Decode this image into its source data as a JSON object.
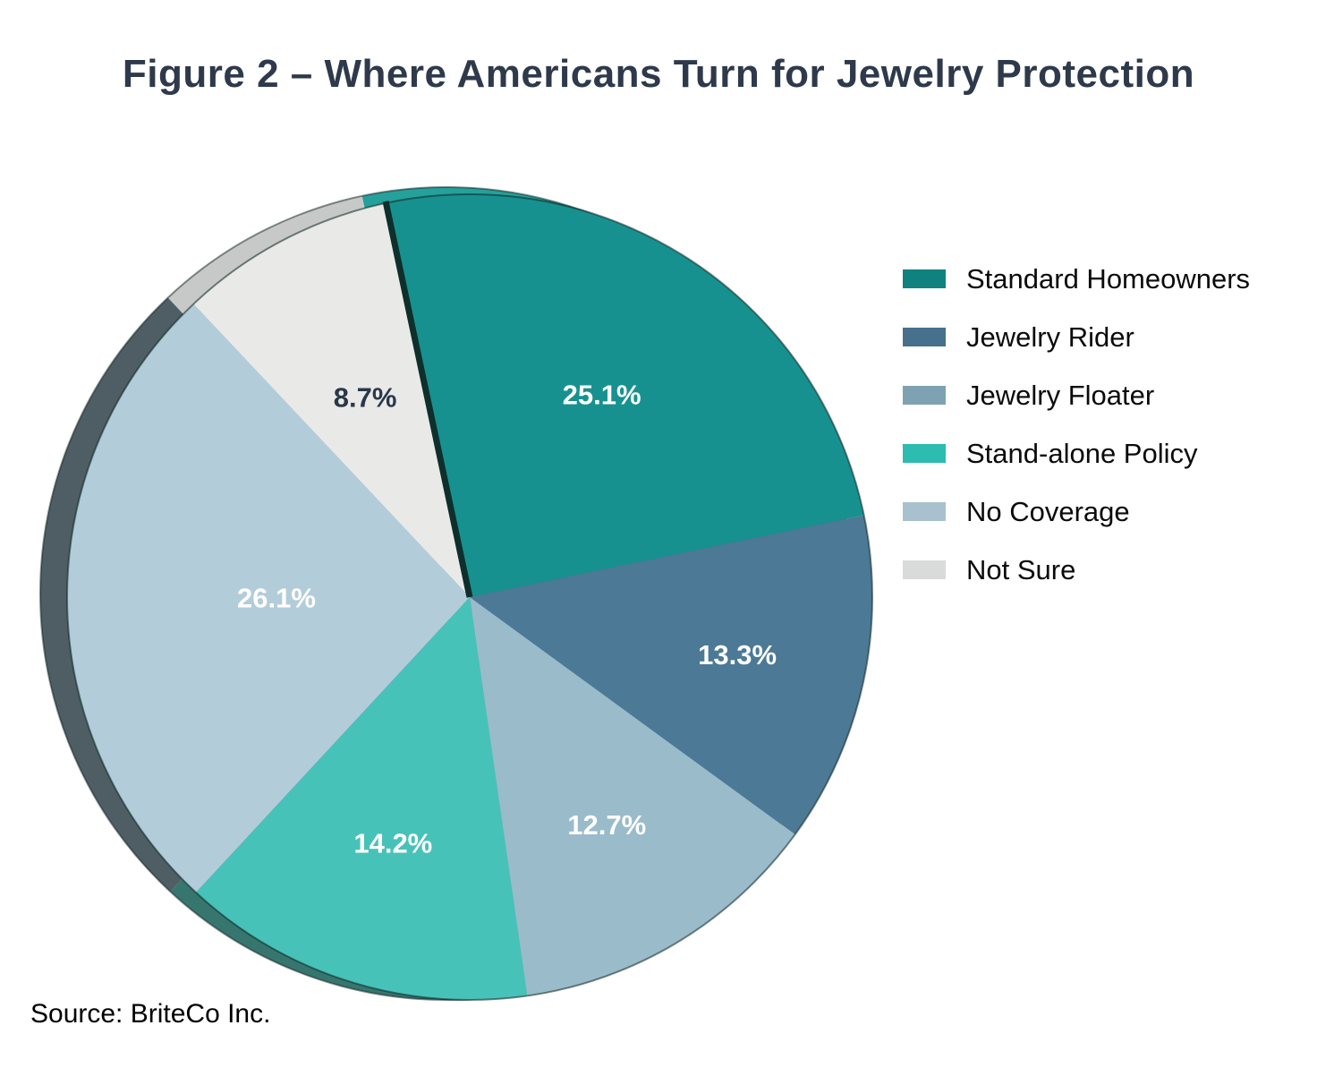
{
  "title": "Figure 2 – Where Americans Turn for Jewelry Protection",
  "source": "Source: BriteCo Inc.",
  "chart_data": {
    "type": "pie",
    "title": "Figure 2 – Where Americans Turn for Jewelry Protection",
    "style": "3d pie, clockwise, dark divider line before first slice, depth rim visible on left",
    "start_angle_deg": -12,
    "legend_position": "right",
    "label_format": "percent",
    "divider_color": "#0E2F2B",
    "title_color": "#2E3A4B",
    "slices": [
      {
        "label": "Standard Homeowners",
        "value": 25.1,
        "display": "25.1%",
        "color": "#17918F",
        "side_color": "#26A09B",
        "legend_color": "#0F827F",
        "label_color": "#FFFFFF",
        "label_r": 0.6
      },
      {
        "label": "Jewelry Rider",
        "value": 13.3,
        "display": "13.3%",
        "color": "#4C7996",
        "side_color": "#3C607A",
        "legend_color": "#47708C",
        "label_color": "#FFFFFF",
        "label_r": 0.68
      },
      {
        "label": "Jewelry Floater",
        "value": 12.7,
        "display": "12.7%",
        "color": "#9ABBCA",
        "side_color": "#7FA2B2",
        "legend_color": "#7FA2B2",
        "label_color": "#FFFFFF",
        "label_r": 0.66
      },
      {
        "label": "Stand-alone Policy",
        "value": 14.2,
        "display": "14.2%",
        "color": "#47C2B9",
        "side_color": "#37766F",
        "legend_color": "#2DBCB0",
        "label_color": "#FFFFFF",
        "label_r": 0.64
      },
      {
        "label": "No Coverage",
        "value": 26.1,
        "display": "26.1%",
        "color": "#B3CCDA",
        "side_color": "#4E5E64",
        "legend_color": "#A9C1CF",
        "label_color": "#FFFFFF",
        "label_r": 0.48
      },
      {
        "label": "Not Sure",
        "value": 8.7,
        "display": "8.7%",
        "color": "#E9EAE8",
        "side_color": "#C7C9C8",
        "legend_color": "#D9DADA",
        "label_color": "#2B3749",
        "label_r": 0.56
      }
    ]
  }
}
